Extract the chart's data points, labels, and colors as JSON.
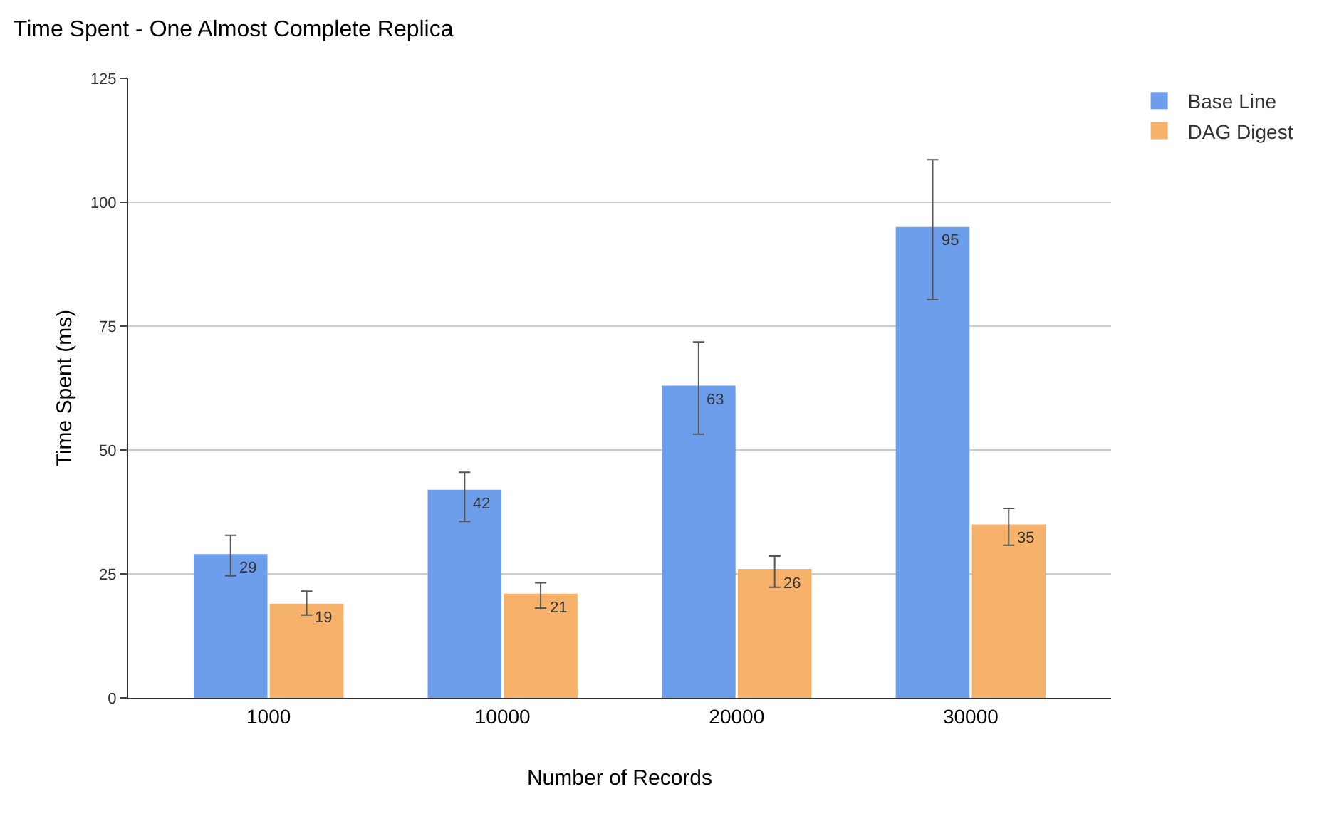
{
  "chart_data": {
    "type": "bar",
    "title": "Time Spent - One Almost Complete Replica",
    "xlabel": "Number of Records",
    "ylabel": "Time Spent (ms)",
    "categories": [
      "1000",
      "10000",
      "20000",
      "30000"
    ],
    "series": [
      {
        "name": "Base Line",
        "color": "#6d9eeb",
        "values": [
          29,
          42,
          63,
          95
        ],
        "errors": [
          [
            24.6,
            32.8
          ],
          [
            35.6,
            45.5
          ],
          [
            53.2,
            71.8
          ],
          [
            80.3,
            108.6
          ]
        ]
      },
      {
        "name": "DAG Digest",
        "color": "#f6b26b",
        "values": [
          19,
          21,
          26,
          35
        ],
        "errors": [
          [
            16.7,
            21.5
          ],
          [
            18.1,
            23.2
          ],
          [
            22.3,
            28.6
          ],
          [
            30.8,
            38.2
          ]
        ]
      }
    ],
    "ylim": [
      0,
      125
    ],
    "yticks": [
      0,
      25,
      50,
      75,
      100,
      125
    ],
    "grid": "y",
    "legend": "top right",
    "data_labels": true
  }
}
